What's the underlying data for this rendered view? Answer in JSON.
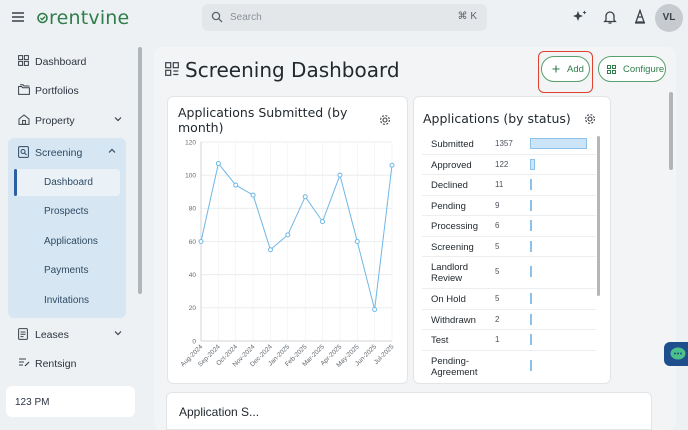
{
  "brand": {
    "name": "rentvine"
  },
  "search": {
    "placeholder": "Search",
    "shortcut": "⌘ K"
  },
  "user": {
    "initials": "VL"
  },
  "sidebar": {
    "items": [
      {
        "label": "Dashboard",
        "icon": "grid-icon"
      },
      {
        "label": "Portfolios",
        "icon": "folders-icon"
      },
      {
        "label": "Property",
        "icon": "house-icon"
      },
      {
        "label": "Screening",
        "icon": "screening-icon"
      },
      {
        "label": "Leases",
        "icon": "document-icon"
      },
      {
        "label": "Rentsign",
        "icon": "sign-icon"
      }
    ],
    "screening_sub": [
      "Dashboard",
      "Prospects",
      "Applications",
      "Payments",
      "Invitations"
    ],
    "time": "123 PM"
  },
  "page": {
    "title": "Screening Dashboard",
    "add_label": "Add",
    "configure_label": "Configure"
  },
  "submitted_card": {
    "title": "Applications Submitted (by month)"
  },
  "status_card": {
    "title": "Applications (by status)"
  },
  "status_rows": [
    {
      "name": "Submitted",
      "count": "1357",
      "value": 1357
    },
    {
      "name": "Approved",
      "count": "122",
      "value": 122
    },
    {
      "name": "Declined",
      "count": "11",
      "value": 11
    },
    {
      "name": "Pending",
      "count": "9",
      "value": 9
    },
    {
      "name": "Processing",
      "count": "6",
      "value": 6
    },
    {
      "name": "Screening",
      "count": "5",
      "value": 5
    },
    {
      "name": "Landlord Review",
      "count": "5",
      "value": 5
    },
    {
      "name": "On Hold",
      "count": "5",
      "value": 5
    },
    {
      "name": "Withdrawn",
      "count": "2",
      "value": 2
    },
    {
      "name": "Test",
      "count": "1",
      "value": 1
    },
    {
      "name": "Pending-Agreement",
      "count": "",
      "value": 1
    }
  ],
  "bottom_card": {
    "title": "Application S..."
  },
  "colors": {
    "accent": "#2e7d4a",
    "line": "#6fb7e6",
    "highlight": "#e0412d"
  },
  "chart_data": {
    "type": "line",
    "title": "Applications Submitted (by month)",
    "categories": [
      "Aug-2024",
      "Sep-2024",
      "Oct-2024",
      "Nov-2024",
      "Dec-2024",
      "Jan-2025",
      "Feb-2025",
      "Mar-2025",
      "Apr-2025",
      "May-2025",
      "Jun-2025",
      "Jul-2025"
    ],
    "values": [
      60,
      107,
      94,
      88,
      55,
      64,
      87,
      72,
      100,
      60,
      19,
      106
    ],
    "yticks": [
      "0",
      "20",
      "40",
      "60",
      "80",
      "100",
      "120"
    ],
    "ylim": [
      0,
      120
    ],
    "grid": true
  }
}
